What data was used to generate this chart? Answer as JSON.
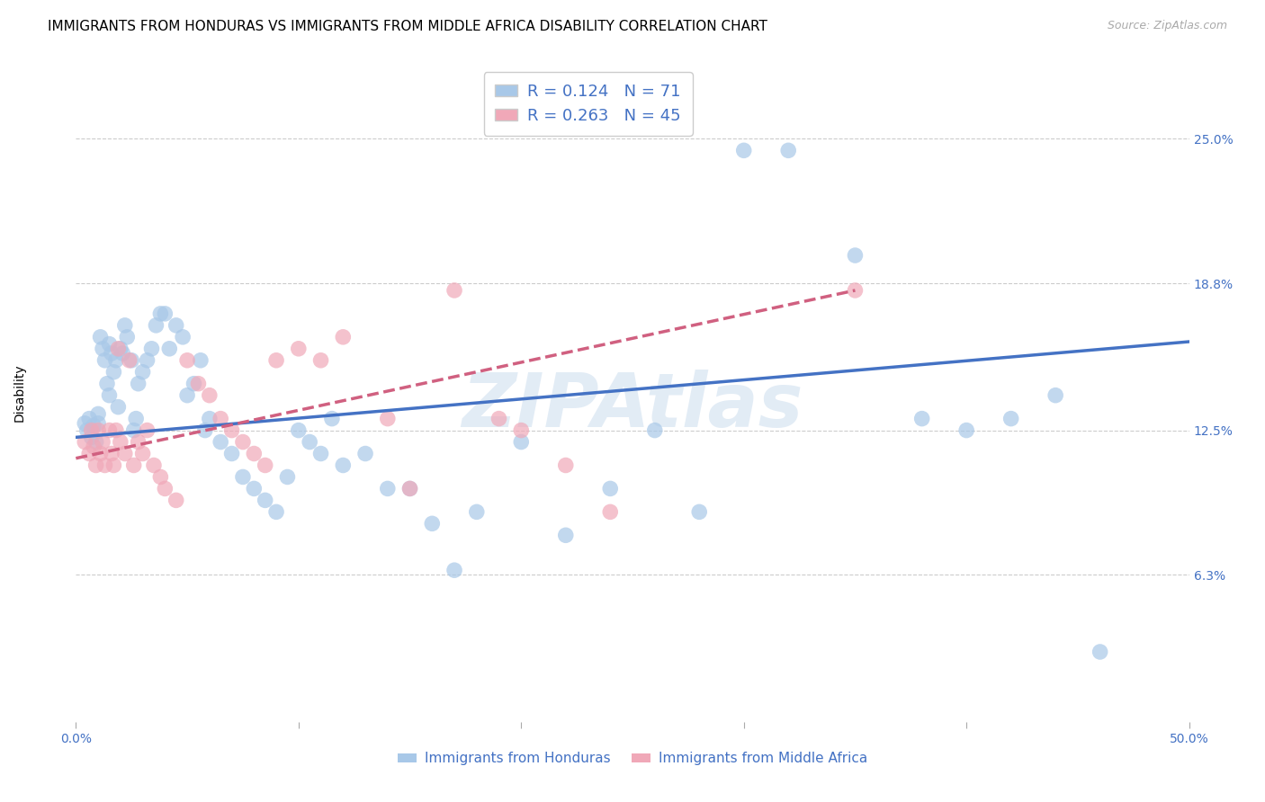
{
  "title": "IMMIGRANTS FROM HONDURAS VS IMMIGRANTS FROM MIDDLE AFRICA DISABILITY CORRELATION CHART",
  "source": "Source: ZipAtlas.com",
  "ylabel": "Disability",
  "xlim": [
    0.0,
    0.5
  ],
  "ylim": [
    0.0,
    0.282
  ],
  "xtick_positions": [
    0.0,
    0.1,
    0.2,
    0.3,
    0.4,
    0.5
  ],
  "xticklabels": [
    "0.0%",
    "",
    "",
    "",
    "",
    "50.0%"
  ],
  "ytick_positions": [
    0.063,
    0.125,
    0.188,
    0.25
  ],
  "ytick_labels": [
    "6.3%",
    "12.5%",
    "18.8%",
    "25.0%"
  ],
  "R_honduras": 0.124,
  "N_honduras": 71,
  "R_middle_africa": 0.263,
  "N_middle_africa": 45,
  "color_honduras": "#a8c8e8",
  "color_middle_africa": "#f0a8b8",
  "trendline_honduras_color": "#4472c4",
  "trendline_africa_color": "#d06080",
  "legend_label_honduras": "Immigrants from Honduras",
  "legend_label_africa": "Immigrants from Middle Africa",
  "watermark": "ZIPAtlas",
  "title_fontsize": 11,
  "axis_label_fontsize": 10,
  "tick_fontsize": 10,
  "honduras_x": [
    0.004,
    0.005,
    0.006,
    0.007,
    0.008,
    0.009,
    0.01,
    0.01,
    0.011,
    0.012,
    0.013,
    0.014,
    0.015,
    0.015,
    0.016,
    0.017,
    0.018,
    0.019,
    0.02,
    0.021,
    0.022,
    0.023,
    0.025,
    0.026,
    0.027,
    0.028,
    0.03,
    0.032,
    0.034,
    0.036,
    0.038,
    0.04,
    0.042,
    0.045,
    0.048,
    0.05,
    0.053,
    0.056,
    0.058,
    0.06,
    0.065,
    0.07,
    0.075,
    0.08,
    0.085,
    0.09,
    0.095,
    0.1,
    0.105,
    0.11,
    0.115,
    0.12,
    0.13,
    0.14,
    0.15,
    0.16,
    0.17,
    0.18,
    0.2,
    0.22,
    0.24,
    0.26,
    0.28,
    0.3,
    0.32,
    0.35,
    0.38,
    0.4,
    0.42,
    0.44,
    0.46
  ],
  "honduras_y": [
    0.128,
    0.125,
    0.13,
    0.122,
    0.127,
    0.12,
    0.128,
    0.132,
    0.165,
    0.16,
    0.155,
    0.145,
    0.14,
    0.162,
    0.158,
    0.15,
    0.155,
    0.135,
    0.16,
    0.158,
    0.17,
    0.165,
    0.155,
    0.125,
    0.13,
    0.145,
    0.15,
    0.155,
    0.16,
    0.17,
    0.175,
    0.175,
    0.16,
    0.17,
    0.165,
    0.14,
    0.145,
    0.155,
    0.125,
    0.13,
    0.12,
    0.115,
    0.105,
    0.1,
    0.095,
    0.09,
    0.105,
    0.125,
    0.12,
    0.115,
    0.13,
    0.11,
    0.115,
    0.1,
    0.1,
    0.085,
    0.065,
    0.09,
    0.12,
    0.08,
    0.1,
    0.125,
    0.09,
    0.245,
    0.245,
    0.2,
    0.13,
    0.125,
    0.13,
    0.14,
    0.03
  ],
  "africa_x": [
    0.004,
    0.006,
    0.007,
    0.008,
    0.009,
    0.01,
    0.011,
    0.012,
    0.013,
    0.015,
    0.016,
    0.017,
    0.018,
    0.019,
    0.02,
    0.022,
    0.024,
    0.026,
    0.028,
    0.03,
    0.032,
    0.035,
    0.038,
    0.04,
    0.045,
    0.05,
    0.055,
    0.06,
    0.065,
    0.07,
    0.075,
    0.08,
    0.085,
    0.09,
    0.1,
    0.11,
    0.12,
    0.14,
    0.15,
    0.17,
    0.19,
    0.2,
    0.22,
    0.24,
    0.35
  ],
  "africa_y": [
    0.12,
    0.115,
    0.125,
    0.118,
    0.11,
    0.125,
    0.115,
    0.12,
    0.11,
    0.125,
    0.115,
    0.11,
    0.125,
    0.16,
    0.12,
    0.115,
    0.155,
    0.11,
    0.12,
    0.115,
    0.125,
    0.11,
    0.105,
    0.1,
    0.095,
    0.155,
    0.145,
    0.14,
    0.13,
    0.125,
    0.12,
    0.115,
    0.11,
    0.155,
    0.16,
    0.155,
    0.165,
    0.13,
    0.1,
    0.185,
    0.13,
    0.125,
    0.11,
    0.09,
    0.185
  ]
}
